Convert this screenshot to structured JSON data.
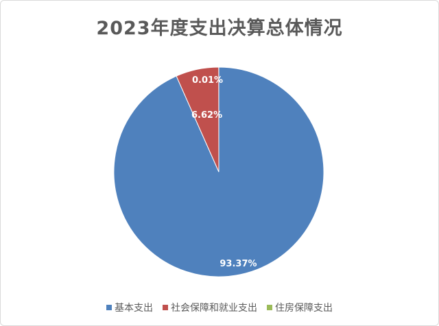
{
  "chart_data": {
    "type": "pie",
    "title": "2023年度支出决算总体情况",
    "categories": [
      "基本支出",
      "社会保障和就业支出",
      "住房保障支出"
    ],
    "values": [
      93.37,
      6.62,
      0.01
    ],
    "data_labels": [
      "93.37%",
      "6.62%",
      "0.01%"
    ],
    "colors": [
      "#4f81bd",
      "#c0504d",
      "#9bbb59"
    ],
    "legend": "bottom",
    "start_angle": "12 o'clock, clockwise"
  }
}
